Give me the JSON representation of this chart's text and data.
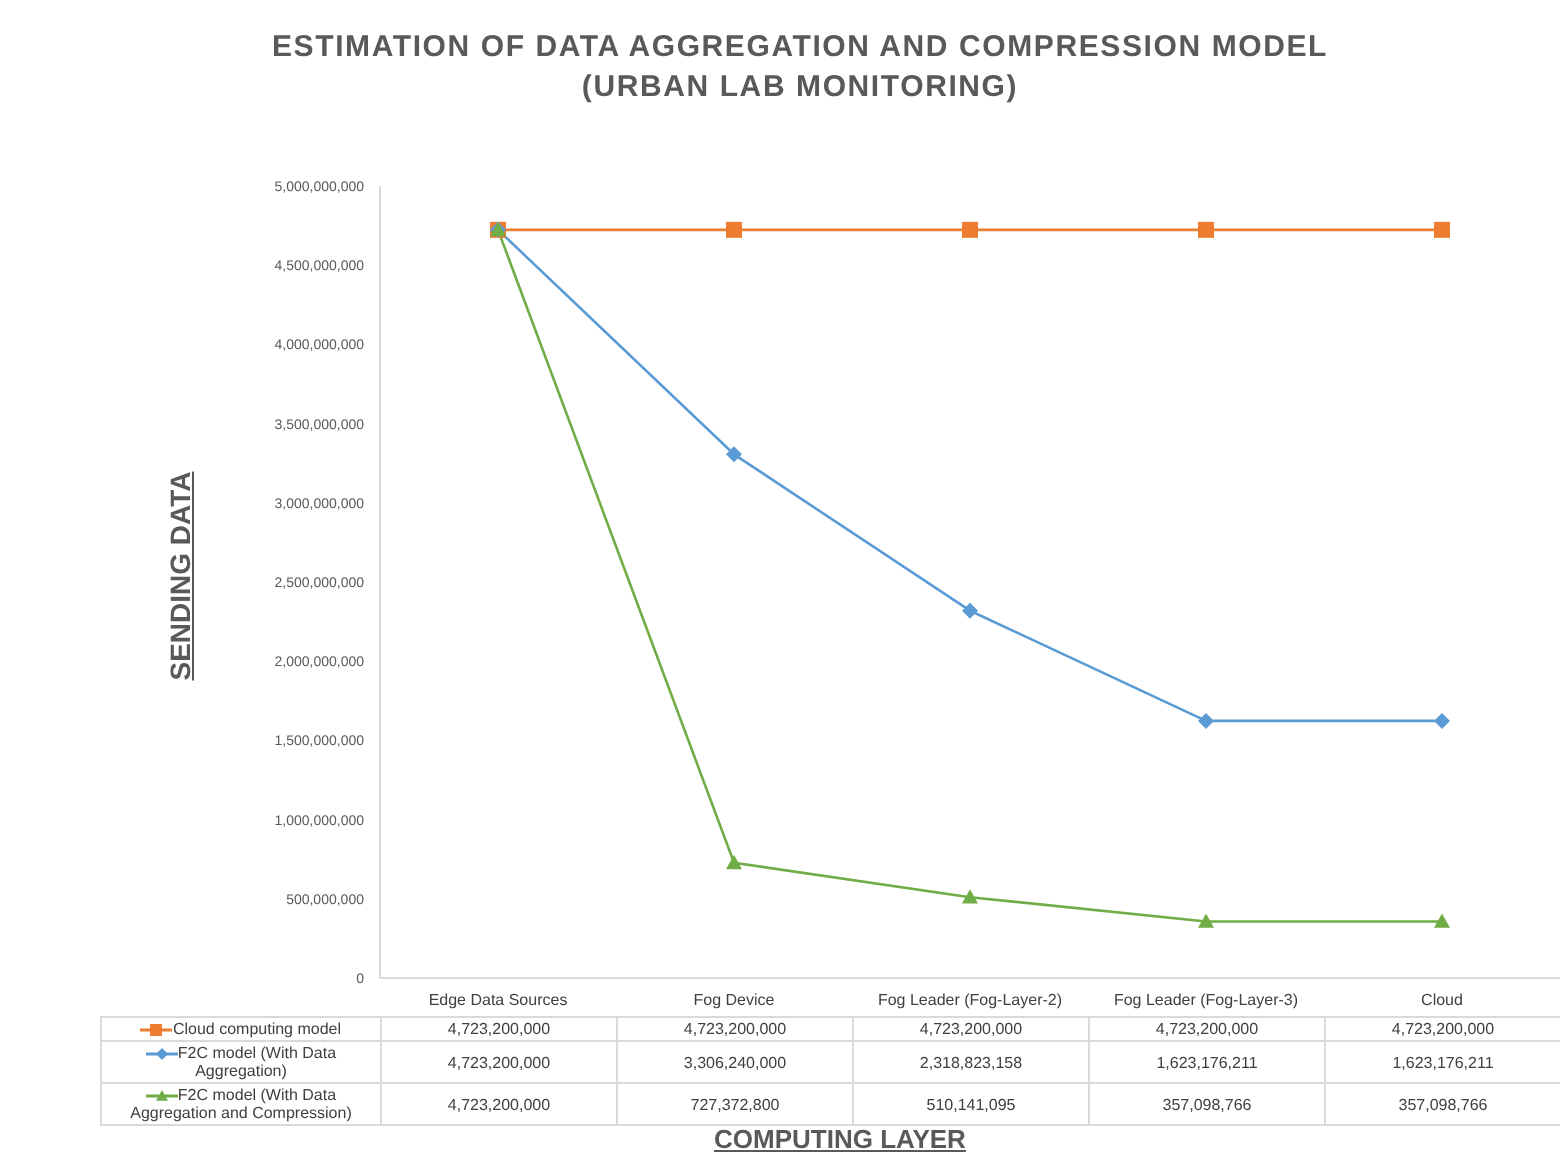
{
  "chart_data": {
    "type": "line",
    "title": "ESTIMATION OF DATA AGGREGATION AND COMPRESSION MODEL (URBAN LAB MONITORING)",
    "xlabel": "COMPUTING LAYER",
    "ylabel": "SENDING DATA",
    "categories": [
      "Edge Data Sources",
      "Fog Device",
      "Fog Leader (Fog-Layer-2)",
      "Fog Leader (Fog-Layer-3)",
      "Cloud"
    ],
    "series": [
      {
        "name": "Cloud computing model",
        "color": "#ed7d31",
        "marker": "square",
        "values": [
          4723200000,
          4723200000,
          4723200000,
          4723200000,
          4723200000
        ],
        "value_labels": [
          "4,723,200,000",
          "4,723,200,000",
          "4,723,200,000",
          "4,723,200,000",
          "4,723,200,000"
        ]
      },
      {
        "name": "F2C model (With Data Aggregation)",
        "color": "#5b9bd5",
        "marker": "diamond",
        "values": [
          4723200000,
          3306240000,
          2318823158,
          1623176211,
          1623176211
        ],
        "value_labels": [
          "4,723,200,000",
          "3,306,240,000",
          "2,318,823,158",
          "1,623,176,211",
          "1,623,176,211"
        ]
      },
      {
        "name": "F2C model (With Data Aggregation and Compression)",
        "color": "#70ad47",
        "marker": "triangle",
        "values": [
          4723200000,
          727372800,
          510141095,
          357098766,
          357098766
        ],
        "value_labels": [
          "4,723,200,000",
          "727,372,800",
          "510,141,095",
          "357,098,766",
          "357,098,766"
        ]
      }
    ],
    "ylim": [
      0,
      5000000000
    ],
    "yticks": [
      0,
      {
        "value": 500000000,
        "label": "500,000,000"
      },
      {
        "value": 1000000000,
        "label": "1,000,000,000"
      },
      {
        "value": 1500000000,
        "label": "1,500,000,000"
      },
      {
        "value": 2000000000,
        "label": "2,000,000,000"
      },
      {
        "value": 2500000000,
        "label": "2,500,000,000"
      },
      {
        "value": 3000000000,
        "label": "3,000,000,000"
      },
      {
        "value": 3500000000,
        "label": "3,500,000,000"
      },
      {
        "value": 4000000000,
        "label": "4,000,000,000"
      },
      {
        "value": 4500000000,
        "label": "4,500,000,000"
      },
      {
        "value": 5000000000,
        "label": "5,000,000,000"
      }
    ],
    "legend": "bottom"
  }
}
